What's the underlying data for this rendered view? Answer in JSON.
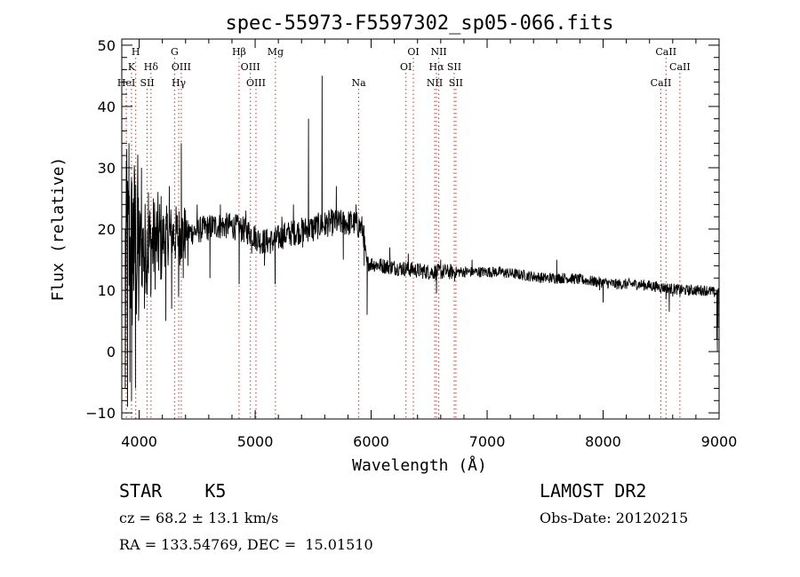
{
  "chart_data": {
    "type": "line",
    "title": "spec-55973-F5597302_sp05-066.fits",
    "xlabel": "Wavelength (Å)",
    "ylabel": "Flux (relative)",
    "xlim": [
      3850,
      9000
    ],
    "ylim": [
      -11,
      51
    ],
    "xticks": [
      4000,
      5000,
      6000,
      7000,
      8000,
      9000
    ],
    "yticks": [
      -10,
      0,
      10,
      20,
      30,
      40,
      50
    ],
    "grid": false,
    "line_color": "#000000",
    "marker_color": "#cc3333",
    "spectral_lines": [
      {
        "label": "H",
        "wavelength": 3970,
        "row": 1
      },
      {
        "label": "K",
        "wavelength": 3934,
        "row": 2
      },
      {
        "label": "HeI",
        "wavelength": 3889,
        "row": 3
      },
      {
        "label": "Hδ",
        "wavelength": 4102,
        "row": 2
      },
      {
        "label": "SII",
        "wavelength": 4069,
        "row": 3
      },
      {
        "label": "G",
        "wavelength": 4305,
        "row": 1
      },
      {
        "label": "OIII",
        "wavelength": 4363,
        "row": 2
      },
      {
        "label": "Hγ",
        "wavelength": 4341,
        "row": 3
      },
      {
        "label": "Hβ",
        "wavelength": 4861,
        "row": 1
      },
      {
        "label": "OIII",
        "wavelength": 4959,
        "row": 2
      },
      {
        "label": "OIII",
        "wavelength": 5007,
        "row": 3
      },
      {
        "label": "Mg",
        "wavelength": 5175,
        "row": 1
      },
      {
        "label": "Na",
        "wavelength": 5893,
        "row": 3
      },
      {
        "label": "OI",
        "wavelength": 6364,
        "row": 1
      },
      {
        "label": "OI",
        "wavelength": 6300,
        "row": 2
      },
      {
        "label": "NII",
        "wavelength": 6583,
        "row": 1
      },
      {
        "label": "Hα",
        "wavelength": 6563,
        "row": 2
      },
      {
        "label": "SII",
        "wavelength": 6716,
        "row": 2
      },
      {
        "label": "NII",
        "wavelength": 6548,
        "row": 3
      },
      {
        "label": "SII",
        "wavelength": 6731,
        "row": 3
      },
      {
        "label": "CaII",
        "wavelength": 8542,
        "row": 1
      },
      {
        "label": "CaII",
        "wavelength": 8662,
        "row": 2
      },
      {
        "label": "CaII",
        "wavelength": 8498,
        "row": 3
      }
    ],
    "anchors": [
      [
        3880,
        15
      ],
      [
        3950,
        17
      ],
      [
        4050,
        17
      ],
      [
        4150,
        18
      ],
      [
        4250,
        19
      ],
      [
        4350,
        19
      ],
      [
        4450,
        19.5
      ],
      [
        4550,
        20
      ],
      [
        4650,
        20.5
      ],
      [
        4800,
        20.5
      ],
      [
        4950,
        19.5
      ],
      [
        5050,
        18
      ],
      [
        5150,
        18
      ],
      [
        5250,
        19
      ],
      [
        5350,
        19.5
      ],
      [
        5450,
        20
      ],
      [
        5550,
        20.5
      ],
      [
        5650,
        21
      ],
      [
        5750,
        21
      ],
      [
        5850,
        21
      ],
      [
        5930,
        20
      ],
      [
        5960,
        14.5
      ],
      [
        6100,
        14
      ],
      [
        6300,
        13.5
      ],
      [
        6500,
        13
      ],
      [
        6700,
        13
      ],
      [
        6900,
        13
      ],
      [
        7100,
        13
      ],
      [
        7300,
        12.5
      ],
      [
        7500,
        12
      ],
      [
        7700,
        12
      ],
      [
        7900,
        11.5
      ],
      [
        8100,
        11
      ],
      [
        8300,
        11
      ],
      [
        8500,
        10.5
      ],
      [
        8700,
        10
      ],
      [
        8900,
        10
      ],
      [
        8980,
        9.5
      ]
    ],
    "features": [
      [
        3880,
        -6
      ],
      [
        3893,
        33
      ],
      [
        3900,
        -9
      ],
      [
        3912,
        34
      ],
      [
        3920,
        -5
      ],
      [
        3934,
        -8
      ],
      [
        3950,
        25
      ],
      [
        3968,
        -6
      ],
      [
        3985,
        26
      ],
      [
        3995,
        5
      ],
      [
        4020,
        30
      ],
      [
        4045,
        7
      ],
      [
        4080,
        26
      ],
      [
        4100,
        9
      ],
      [
        4160,
        23
      ],
      [
        4230,
        5
      ],
      [
        4260,
        27
      ],
      [
        4280,
        7
      ],
      [
        4340,
        9
      ],
      [
        4363,
        34
      ],
      [
        4380,
        12
      ],
      [
        4420,
        14
      ],
      [
        4500,
        24
      ],
      [
        4610,
        12
      ],
      [
        4700,
        24
      ],
      [
        4850,
        22
      ],
      [
        4862,
        11
      ],
      [
        4920,
        23
      ],
      [
        4970,
        16
      ],
      [
        5080,
        14
      ],
      [
        5172,
        11
      ],
      [
        5230,
        22
      ],
      [
        5330,
        24
      ],
      [
        5410,
        17
      ],
      [
        5460,
        38
      ],
      [
        5500,
        18
      ],
      [
        5577,
        45
      ],
      [
        5600,
        19
      ],
      [
        5700,
        27
      ],
      [
        5760,
        15
      ],
      [
        5870,
        24
      ],
      [
        5898,
        21
      ],
      [
        5940,
        14
      ],
      [
        5965,
        6
      ],
      [
        6160,
        17
      ],
      [
        6320,
        16
      ],
      [
        6563,
        9.5
      ],
      [
        6600,
        15
      ],
      [
        6720,
        11.5
      ],
      [
        6870,
        15
      ],
      [
        7600,
        15
      ],
      [
        7970,
        10
      ],
      [
        8000,
        8
      ],
      [
        8542,
        8.5
      ],
      [
        8570,
        6.5
      ],
      [
        8600,
        9
      ],
      [
        8662,
        9
      ],
      [
        8980,
        2
      ],
      [
        8985,
        0
      ],
      [
        8990,
        4
      ],
      [
        8995,
        10
      ]
    ],
    "bottom_left": {
      "class_line": "STAR    K5",
      "cz": "cz = 68.2 ± 13.1 km/s",
      "radec": "RA = 133.54769, DEC =  15.01510"
    },
    "bottom_right": {
      "survey": "LAMOST DR2",
      "obsdate": "Obs-Date: 20120215"
    }
  }
}
